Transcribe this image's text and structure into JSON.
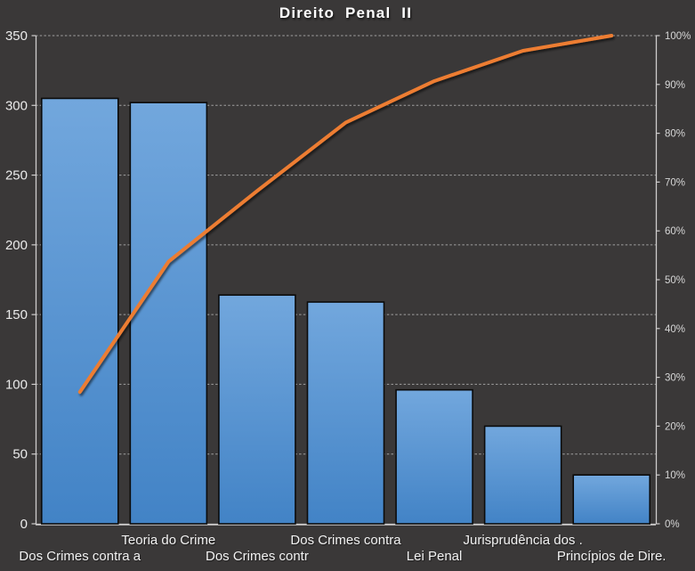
{
  "title": "Direito Penal II",
  "colors": {
    "background": "#3a3838",
    "bar_gradient_top": "#72a7dd",
    "bar_gradient_bottom": "#4283c6",
    "bar_border": "#0b0b0b",
    "line": "#ed7d31",
    "gridline": "#c3c3c3",
    "axis_line": "#cfcdcd",
    "left_axis_text": "#eaeaea",
    "right_axis_text": "#d6d6d6",
    "category_text": "#f2f2f2",
    "title_text": "#ffffff"
  },
  "chart_data": {
    "type": "bar",
    "subtype": "pareto-with-cumulative-line",
    "title": "Direito Penal II",
    "categories": [
      "Dos Crimes contra a",
      "Teoria do Crime",
      "Dos Crimes contr",
      "Dos Crimes contra",
      "Lei Penal",
      "Jurisprudência dos .",
      "Princípios de Dire."
    ],
    "series": [
      {
        "name": "frequency-bars",
        "type": "bar",
        "axis": "left",
        "values": [
          305,
          302,
          164,
          159,
          96,
          70,
          35
        ]
      },
      {
        "name": "cumulative-percent-line",
        "type": "line",
        "axis": "right",
        "values": [
          27.0,
          53.7,
          68.2,
          82.2,
          90.7,
          96.9,
          100.0
        ]
      }
    ],
    "left_axis": {
      "min": 0,
      "max": 350,
      "tick_interval": 50,
      "tick_labels": [
        "0",
        "50",
        "100",
        "150",
        "200",
        "250",
        "300",
        "350"
      ]
    },
    "right_axis": {
      "min": 0,
      "max": 100,
      "tick_interval": 10,
      "tick_labels": [
        "0%",
        "10%",
        "20%",
        "30%",
        "40%",
        "50%",
        "60%",
        "70%",
        "80%",
        "90%",
        "100%"
      ]
    },
    "xlabel": "",
    "ylabel": "",
    "grid": "horizontal-dashed",
    "legend": "none",
    "label_stagger": [
      1,
      0,
      1,
      0,
      1,
      0,
      1
    ]
  }
}
